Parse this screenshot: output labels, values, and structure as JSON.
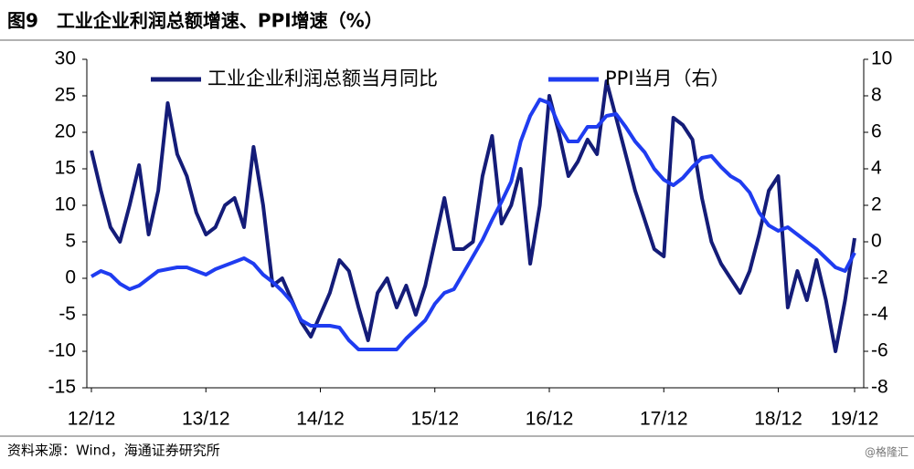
{
  "chart_data": {
    "type": "line",
    "title": "图9　工业企业利润总额增速、PPI增速（%）",
    "source": "资料来源：Wind，海通证券研究所",
    "watermark": "@格隆汇",
    "categories": [
      "12/12",
      null,
      null,
      null,
      null,
      null,
      null,
      null,
      null,
      null,
      null,
      null,
      "13/12",
      null,
      null,
      null,
      null,
      null,
      null,
      null,
      null,
      null,
      null,
      null,
      "14/12",
      null,
      null,
      null,
      null,
      null,
      null,
      null,
      null,
      null,
      null,
      null,
      "15/12",
      null,
      null,
      null,
      null,
      null,
      null,
      null,
      null,
      null,
      null,
      null,
      "16/12",
      null,
      null,
      null,
      null,
      null,
      null,
      null,
      null,
      null,
      null,
      null,
      "17/12",
      null,
      null,
      null,
      null,
      null,
      null,
      null,
      null,
      null,
      null,
      null,
      "18/12",
      null,
      null,
      null,
      null,
      null,
      null,
      null,
      "19/12"
    ],
    "series": [
      {
        "name": "工业企业利润总额当月同比",
        "color": "#141c78",
        "axis": "y",
        "values": [
          17.5,
          12,
          7,
          5,
          10,
          15.5,
          6,
          12,
          24,
          17,
          14,
          9,
          6,
          7,
          10,
          11,
          7,
          18,
          10,
          -1,
          0,
          -3,
          -6,
          -8,
          -5,
          -2,
          2.5,
          1,
          -4,
          -8.5,
          -2,
          0,
          -4,
          -1,
          -5,
          -1,
          5,
          11,
          4,
          4,
          5,
          14,
          19.5,
          7.5,
          10,
          15,
          2,
          10,
          25,
          20,
          14,
          16,
          19,
          17,
          27,
          22,
          17,
          12,
          8,
          4,
          3,
          22,
          21,
          19,
          11,
          5,
          2,
          0,
          -2,
          1,
          6,
          12,
          14,
          -4,
          1,
          -3,
          2.5,
          -3,
          -10,
          -3,
          5.5
        ]
      },
      {
        "name": "PPI当月（右）",
        "color": "#1f3cf0",
        "axis": "y2",
        "values": [
          -1.9,
          -1.6,
          -1.8,
          -2.3,
          -2.6,
          -2.4,
          -2.0,
          -1.6,
          -1.5,
          -1.4,
          -1.4,
          -1.6,
          -1.8,
          -1.5,
          -1.3,
          -1.1,
          -0.9,
          -1.2,
          -1.8,
          -2.2,
          -2.7,
          -3.3,
          -4.3,
          -4.6,
          -4.6,
          -4.6,
          -4.7,
          -5.4,
          -5.9,
          -5.9,
          -5.9,
          -5.9,
          -5.9,
          -5.3,
          -4.8,
          -4.3,
          -3.4,
          -2.8,
          -2.6,
          -1.7,
          -0.8,
          0.1,
          1.2,
          2.2,
          3.3,
          5.5,
          6.9,
          7.8,
          7.6,
          6.4,
          5.5,
          5.5,
          6.3,
          6.3,
          6.9,
          7.0,
          6.3,
          5.5,
          4.9,
          4.0,
          3.4,
          3.1,
          3.5,
          4.1,
          4.6,
          4.7,
          4.1,
          3.6,
          3.3,
          2.7,
          1.6,
          0.9,
          0.6,
          0.8,
          0.4,
          0,
          -0.4,
          -0.9,
          -1.4,
          -1.6,
          -0.6
        ]
      }
    ],
    "ylim": [
      -15,
      30
    ],
    "yticks": [
      -15,
      -10,
      -5,
      0,
      5,
      10,
      15,
      20,
      25,
      30
    ],
    "y2lim": [
      -8,
      10
    ],
    "y2ticks": [
      -8,
      -6,
      -4,
      -2,
      0,
      2,
      4,
      6,
      8,
      10
    ]
  }
}
